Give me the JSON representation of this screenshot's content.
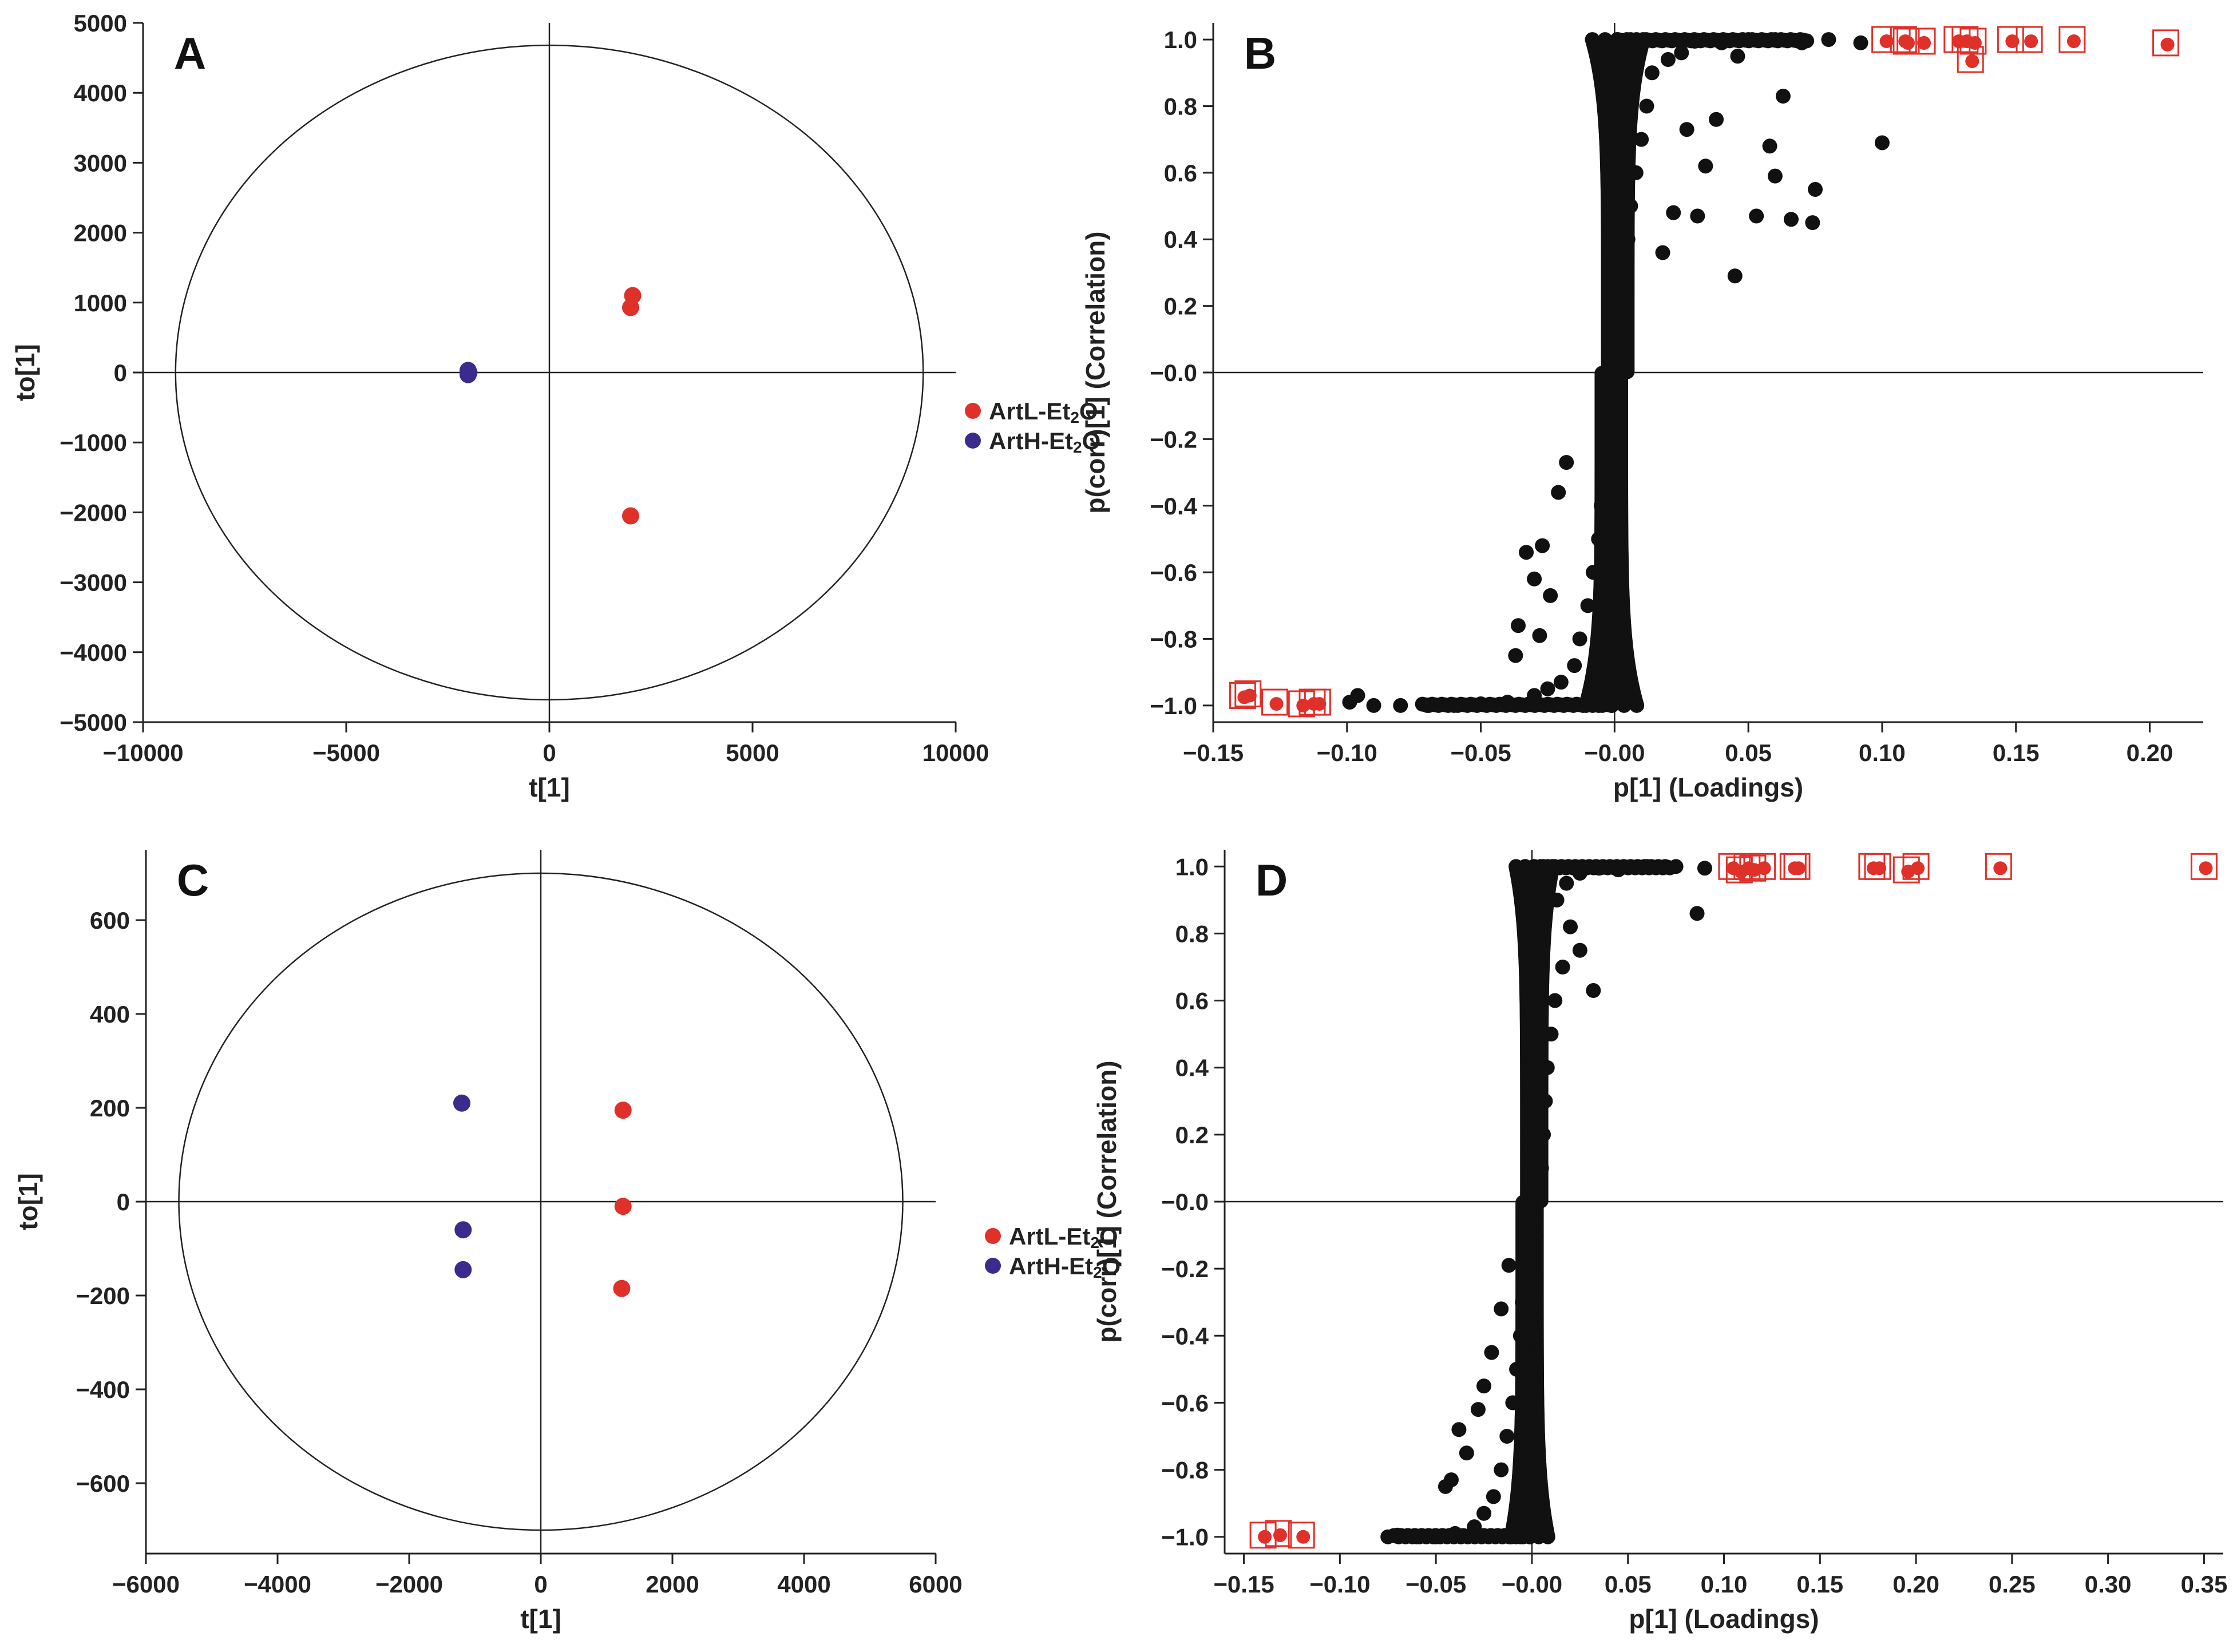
{
  "figure": {
    "colors": {
      "artL": "#e0302a",
      "artH": "#3b2b8c",
      "loading": "#111111",
      "axis": "#222222"
    }
  },
  "chart_data": [
    {
      "type": "scatter",
      "panel_label": "A",
      "xlabel": "t[1]",
      "ylabel": "to[1]",
      "xlim": [
        -10000,
        10000
      ],
      "ylim": [
        -5000,
        5000
      ],
      "xticks": [
        -10000,
        -5000,
        0,
        5000,
        10000
      ],
      "xtick_labels": [
        "−10000",
        "−5000",
        "0",
        "5000",
        "10000"
      ],
      "yticks": [
        5000,
        4000,
        3000,
        2000,
        1000,
        0,
        -1000,
        -2000,
        -3000,
        -4000,
        -5000
      ],
      "ytick_labels": [
        "5000",
        "4000",
        "3000",
        "2000",
        "1000",
        "0",
        "−1000",
        "−2000",
        "−3000",
        "−4000",
        "−5000"
      ],
      "ellipse": {
        "rx": 9200,
        "ry": 4680
      },
      "legend": [
        {
          "name": "ArtL-Et",
          "sub": "2",
          "suffix": "O",
          "color": "#e0302a"
        },
        {
          "name": "ArtH-Et",
          "sub": "2",
          "suffix": "O",
          "color": "#3b2b8c"
        }
      ],
      "series": [
        {
          "name": "ArtL-Et2O",
          "color": "#e0302a",
          "points": [
            [
              2050,
              1100
            ],
            [
              2000,
              930
            ],
            [
              2000,
              -2050
            ]
          ]
        },
        {
          "name": "ArtH-Et2O",
          "color": "#3b2b8c",
          "points": [
            [
              -2000,
              30
            ],
            [
              -2000,
              -30
            ],
            [
              -1980,
              0
            ]
          ]
        }
      ]
    },
    {
      "type": "scatter",
      "panel_label": "B",
      "xlabel": "p[1] (Loadings)",
      "ylabel": "p(corr)[1] (Correlation)",
      "xlim": [
        -0.15,
        0.22
      ],
      "ylim": [
        -1.05,
        1.05
      ],
      "xticks": [
        -0.15,
        -0.1,
        -0.05,
        0,
        0.05,
        0.1,
        0.15,
        0.2
      ],
      "xtick_labels": [
        "−0.15",
        "−0.10",
        "−0.05",
        "−0.00",
        "0.05",
        "0.10",
        "0.15",
        "0.20"
      ],
      "yticks": [
        1.0,
        0.8,
        0.6,
        0.4,
        0.2,
        0,
        -0.2,
        -0.4,
        -0.6,
        -0.8,
        -1.0
      ],
      "ytick_labels": [
        "1.0",
        "0.8",
        "0.6",
        "0.4",
        "0.2",
        "−0.0",
        "−0.2",
        "−0.4",
        "−0.6",
        "−0.8",
        "−1.0"
      ],
      "highlighted": [
        [
          -0.139,
          -0.97
        ],
        [
          -0.137,
          -0.965
        ],
        [
          -0.127,
          -0.99
        ],
        [
          -0.117,
          -0.995
        ],
        [
          -0.113,
          -0.99
        ],
        [
          -0.111,
          -0.99
        ],
        [
          0.101,
          1.0
        ],
        [
          0.108,
          1.0
        ],
        [
          0.109,
          0.995
        ],
        [
          0.115,
          0.995
        ],
        [
          0.128,
          1.0
        ],
        [
          0.131,
          1.0
        ],
        [
          0.133,
          0.94
        ],
        [
          0.134,
          0.995
        ],
        [
          0.148,
          1.0
        ],
        [
          0.155,
          1.0
        ],
        [
          0.171,
          1.0
        ],
        [
          0.206,
          0.99
        ]
      ],
      "loadings": [
        [
          0.1,
          0.69
        ],
        [
          0.075,
          0.55
        ],
        [
          0.074,
          0.45
        ],
        [
          0.066,
          0.46
        ],
        [
          0.063,
          0.83
        ],
        [
          0.06,
          0.59
        ],
        [
          0.058,
          0.68
        ],
        [
          0.053,
          0.47
        ],
        [
          0.046,
          0.95
        ],
        [
          0.045,
          0.29
        ],
        [
          0.038,
          0.76
        ],
        [
          0.034,
          0.62
        ],
        [
          0.031,
          0.47
        ],
        [
          0.027,
          0.73
        ],
        [
          0.022,
          0.48
        ],
        [
          0.018,
          0.36
        ],
        [
          0.092,
          0.99
        ],
        [
          0.08,
          1.0
        ],
        [
          0.07,
          0.99
        ],
        [
          0.06,
          1.0
        ],
        [
          0.05,
          1.0
        ],
        [
          0.04,
          0.99
        ],
        [
          0.03,
          0.995
        ],
        [
          0.025,
          0.96
        ],
        [
          0.02,
          0.94
        ],
        [
          0.014,
          0.9
        ],
        [
          0.012,
          0.8
        ],
        [
          0.01,
          0.7
        ],
        [
          0.008,
          0.6
        ],
        [
          0.006,
          0.5
        ],
        [
          0.005,
          0.4
        ],
        [
          0.004,
          0.3
        ],
        [
          0.003,
          0.2
        ],
        [
          0.002,
          0.1
        ],
        [
          -0.002,
          -0.1
        ],
        [
          -0.003,
          -0.2
        ],
        [
          -0.004,
          -0.3
        ],
        [
          -0.005,
          -0.4
        ],
        [
          -0.006,
          -0.5
        ],
        [
          -0.008,
          -0.6
        ],
        [
          -0.01,
          -0.7
        ],
        [
          -0.013,
          -0.8
        ],
        [
          -0.015,
          -0.88
        ],
        [
          -0.02,
          -0.93
        ],
        [
          -0.025,
          -0.95
        ],
        [
          -0.03,
          -0.97
        ],
        [
          -0.04,
          -0.99
        ],
        [
          -0.05,
          -0.995
        ],
        [
          -0.06,
          -1.0
        ],
        [
          -0.07,
          -1.0
        ],
        [
          -0.08,
          -1.0
        ],
        [
          -0.09,
          -1.0
        ],
        [
          -0.099,
          -0.99
        ],
        [
          -0.096,
          -0.97
        ],
        [
          -0.036,
          -0.76
        ],
        [
          -0.033,
          -0.54
        ],
        [
          -0.03,
          -0.62
        ],
        [
          -0.027,
          -0.52
        ],
        [
          -0.021,
          -0.36
        ],
        [
          -0.018,
          -0.27
        ],
        [
          -0.037,
          -0.85
        ],
        [
          -0.028,
          -0.79
        ],
        [
          -0.024,
          -0.67
        ]
      ],
      "cluster_note": "dense band of thousands of loadings near p[1]≈0 spanning p(corr) −1.0 to 1.0"
    },
    {
      "type": "scatter",
      "panel_label": "C",
      "xlabel": "t[1]",
      "ylabel": "to[1]",
      "xlim": [
        -6000,
        6000
      ],
      "ylim": [
        -750,
        750
      ],
      "xticks": [
        -6000,
        -4000,
        -2000,
        0,
        2000,
        4000,
        6000
      ],
      "xtick_labels": [
        "−6000",
        "−4000",
        "−2000",
        "0",
        "2000",
        "4000",
        "6000"
      ],
      "yticks": [
        600,
        400,
        200,
        0,
        -200,
        -400,
        -600
      ],
      "ytick_labels": [
        "600",
        "400",
        "200",
        "0",
        "−200",
        "−400",
        "−600"
      ],
      "ellipse": {
        "rx": 5500,
        "ry": 700
      },
      "legend": [
        {
          "name": "ArtL-Et",
          "sub": "2",
          "suffix": "O",
          "color": "#e0302a"
        },
        {
          "name": "ArtH-Et",
          "sub": "2",
          "suffix": "O",
          "color": "#3b2b8c"
        }
      ],
      "series": [
        {
          "name": "ArtL-Et2O",
          "color": "#e0302a",
          "points": [
            [
              1250,
              195
            ],
            [
              1250,
              -10
            ],
            [
              1230,
              -185
            ]
          ]
        },
        {
          "name": "ArtH-Et2O",
          "color": "#3b2b8c",
          "points": [
            [
              -1200,
              210
            ],
            [
              -1180,
              -60
            ],
            [
              -1180,
              -145
            ]
          ]
        }
      ]
    },
    {
      "type": "scatter",
      "panel_label": "D",
      "xlabel": "p[1] (Loadings)",
      "ylabel": "p(corr)[1] (Correlation)",
      "xlim": [
        -0.16,
        0.36
      ],
      "ylim": [
        -1.05,
        1.05
      ],
      "xticks": [
        -0.15,
        -0.1,
        -0.05,
        0,
        0.05,
        0.1,
        0.15,
        0.2,
        0.25,
        0.3,
        0.35
      ],
      "xtick_labels": [
        "−0.15",
        "−0.10",
        "−0.05",
        "−0.00",
        "0.05",
        "0.10",
        "0.15",
        "0.20",
        "0.25",
        "0.30",
        "0.35"
      ],
      "yticks": [
        1.0,
        0.8,
        0.6,
        0.4,
        0.2,
        0,
        -0.2,
        -0.4,
        -0.6,
        -0.8,
        -1.0
      ],
      "ytick_labels": [
        "1.0",
        "0.8",
        "0.6",
        "0.4",
        "0.2",
        "−0.0",
        "−0.2",
        "−0.4",
        "−0.6",
        "−0.8",
        "−1.0"
      ],
      "highlighted": [
        [
          -0.14,
          -0.995
        ],
        [
          -0.132,
          -0.99
        ],
        [
          -0.12,
          -0.995
        ],
        [
          0.104,
          1.0
        ],
        [
          0.108,
          0.99
        ],
        [
          0.112,
          1.0
        ],
        [
          0.115,
          0.995
        ],
        [
          0.12,
          1.0
        ],
        [
          0.136,
          1.0
        ],
        [
          0.138,
          1.0
        ],
        [
          0.177,
          1.0
        ],
        [
          0.18,
          1.0
        ],
        [
          0.195,
          0.99
        ],
        [
          0.2,
          1.0
        ],
        [
          0.243,
          1.0
        ],
        [
          0.35,
          1.0
        ]
      ],
      "loadings": [
        [
          0.086,
          0.86
        ],
        [
          0.032,
          0.63
        ],
        [
          0.025,
          0.75
        ],
        [
          0.02,
          0.82
        ],
        [
          0.016,
          0.7
        ],
        [
          0.012,
          0.6
        ],
        [
          0.01,
          0.5
        ],
        [
          0.008,
          0.4
        ],
        [
          0.007,
          0.3
        ],
        [
          0.006,
          0.2
        ],
        [
          0.005,
          0.1
        ],
        [
          0.09,
          0.995
        ],
        [
          0.075,
          1.0
        ],
        [
          0.06,
          1.0
        ],
        [
          0.045,
          0.99
        ],
        [
          0.035,
          0.995
        ],
        [
          0.025,
          0.98
        ],
        [
          0.018,
          0.95
        ],
        [
          0.013,
          0.9
        ],
        [
          -0.003,
          -0.1
        ],
        [
          -0.004,
          -0.2
        ],
        [
          -0.005,
          -0.3
        ],
        [
          -0.006,
          -0.4
        ],
        [
          -0.008,
          -0.5
        ],
        [
          -0.01,
          -0.6
        ],
        [
          -0.013,
          -0.7
        ],
        [
          -0.016,
          -0.8
        ],
        [
          -0.02,
          -0.88
        ],
        [
          -0.025,
          -0.93
        ],
        [
          -0.03,
          -0.97
        ],
        [
          -0.04,
          -0.99
        ],
        [
          -0.05,
          -1.0
        ],
        [
          -0.06,
          -1.0
        ],
        [
          -0.075,
          -1.0
        ],
        [
          -0.07,
          -0.995
        ],
        [
          -0.045,
          -0.85
        ],
        [
          -0.042,
          -0.83
        ],
        [
          -0.034,
          -0.75
        ],
        [
          -0.028,
          -0.62
        ],
        [
          -0.021,
          -0.45
        ],
        [
          -0.016,
          -0.32
        ],
        [
          -0.012,
          -0.19
        ],
        [
          -0.038,
          -0.68
        ],
        [
          -0.025,
          -0.55
        ]
      ],
      "cluster_note": "dense band of thousands of loadings near p[1]≈0 spanning p(corr) −1.0 to 1.0"
    }
  ]
}
